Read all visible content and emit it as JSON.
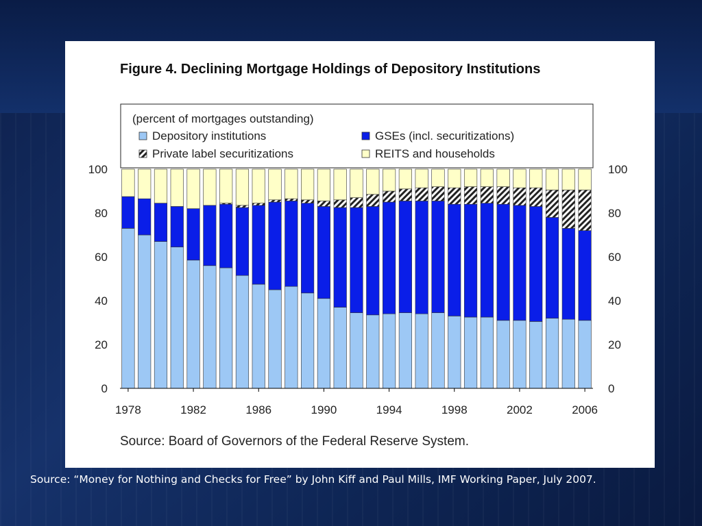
{
  "slide": {
    "caption": "Source: “Money for Nothing and Checks for Free” by John Kiff and Paul Mills, IMF Working Paper, July 2007."
  },
  "figure": {
    "title": "Figure 4. Declining Mortgage Holdings of Depository Institutions",
    "source": "Source: Board of Governors of the Federal Reserve System."
  },
  "chart_data": {
    "type": "bar",
    "stacked": true,
    "subtitle": "(percent of mortgages outstanding)",
    "ylim": [
      0,
      100
    ],
    "yticks": [
      0,
      20,
      40,
      60,
      80,
      100
    ],
    "xtick_labels": [
      "1978",
      "1982",
      "1986",
      "1990",
      "1994",
      "1998",
      "2002",
      "2006"
    ],
    "categories": [
      "1978",
      "1979",
      "1980",
      "1981",
      "1982",
      "1983",
      "1984",
      "1985",
      "1986",
      "1987",
      "1988",
      "1989",
      "1990",
      "1991",
      "1992",
      "1993",
      "1994",
      "1995",
      "1996",
      "1997",
      "1998",
      "1999",
      "2000",
      "2001",
      "2002",
      "2003",
      "2004",
      "2005",
      "2006"
    ],
    "series": [
      {
        "name": "Depository institutions",
        "color": "#9dc8f5",
        "pattern": "solid",
        "values": [
          73,
          70,
          67,
          64.5,
          58.5,
          56,
          55,
          51.5,
          47.5,
          45,
          46.5,
          43.5,
          41,
          37,
          34.5,
          33.5,
          34,
          34.5,
          34,
          34.5,
          33,
          32.5,
          32.5,
          31,
          31,
          30.5,
          32,
          31.5,
          31
        ]
      },
      {
        "name": "GSEs (incl. securitizations)",
        "color": "#0a1ee8",
        "pattern": "solid",
        "values": [
          14.5,
          16.5,
          17.5,
          18.5,
          23.5,
          27.5,
          29,
          31,
          36,
          40,
          39,
          41,
          42,
          45.5,
          48,
          49.5,
          51,
          51,
          51.5,
          51,
          51,
          51.5,
          52,
          53,
          52.5,
          52.5,
          46,
          41.5,
          41
        ]
      },
      {
        "name": "Private label securitizations",
        "color": "#ffffff",
        "pattern": "hatch",
        "values": [
          0,
          0,
          0,
          0,
          0,
          0,
          0.5,
          1,
          1,
          1,
          1,
          1.5,
          2.5,
          3.5,
          4.5,
          5.5,
          5,
          5.5,
          6,
          6.5,
          7.5,
          8,
          7.5,
          8,
          8,
          8.5,
          12.5,
          17.5,
          18.5
        ]
      },
      {
        "name": "REITS and households",
        "color": "#ffffc8",
        "pattern": "solid",
        "values": [
          12.5,
          13.5,
          15.5,
          17,
          18,
          16.5,
          15.5,
          16.5,
          15.5,
          14,
          13.5,
          14,
          14.5,
          14,
          13,
          11.5,
          10,
          9,
          8.5,
          8,
          8.5,
          8,
          8,
          8,
          8.5,
          8.5,
          9.5,
          9.5,
          9.5
        ]
      }
    ]
  }
}
